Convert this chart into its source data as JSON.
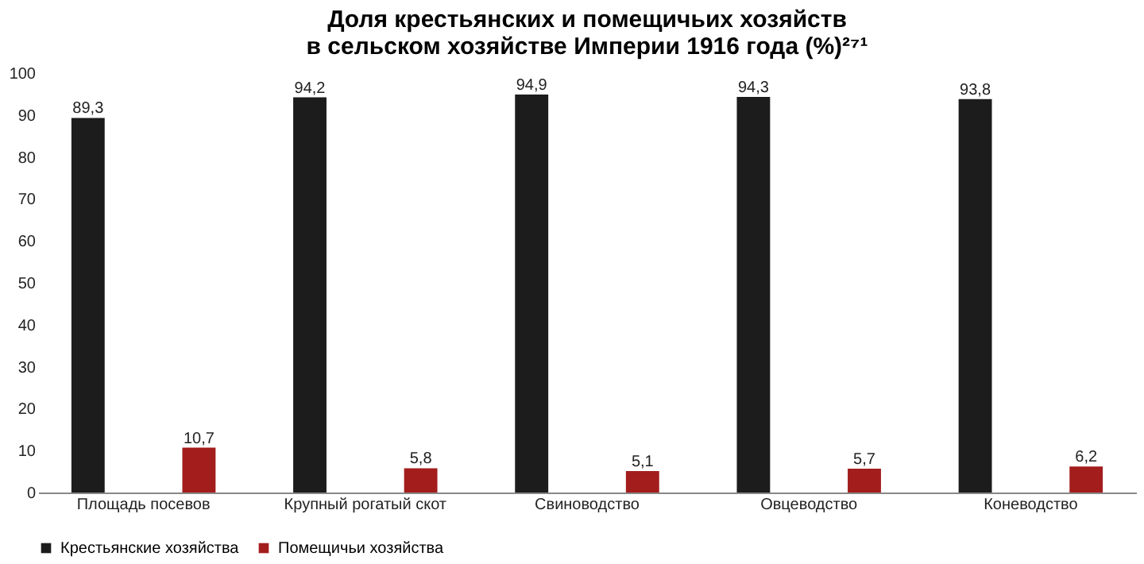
{
  "chart_data": {
    "type": "bar",
    "title": [
      "Доля крестьянских и помещичьих хозяйств",
      "в сельском хозяйстве Империи 1916 года (%)²⁷¹"
    ],
    "categories": [
      "Площадь посевов",
      "Крупный рогатый скот",
      "Свиноводство",
      "Овцеводство",
      "Коневодство"
    ],
    "series": [
      {
        "name": "Крестьянские хозяйства",
        "color": "#1c1c1c",
        "values": [
          89.3,
          94.2,
          94.9,
          94.3,
          93.8
        ],
        "value_labels": [
          "89,3",
          "94,2",
          "94,9",
          "94,3",
          "93,8"
        ]
      },
      {
        "name": "Помещичьи хозяйства",
        "color": "#a31d1d",
        "values": [
          10.7,
          5.8,
          5.1,
          5.7,
          6.2
        ],
        "value_labels": [
          "10,7",
          "5,8",
          "5,1",
          "5,7",
          "6,2"
        ]
      }
    ],
    "ylim": [
      0,
      100
    ],
    "yticks": [
      0,
      10,
      20,
      30,
      40,
      50,
      60,
      70,
      80,
      90,
      100
    ],
    "grid": false,
    "legend": "bottom"
  }
}
